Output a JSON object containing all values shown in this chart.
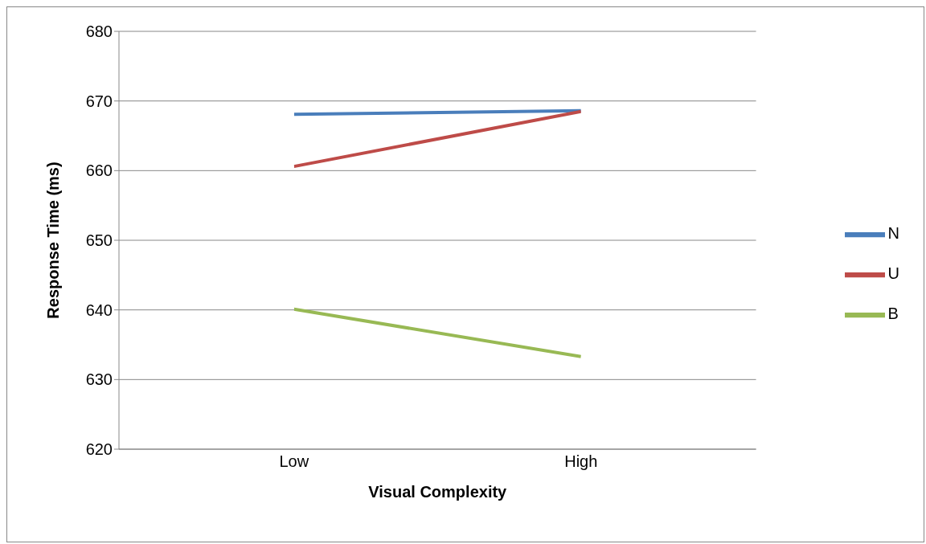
{
  "chart_data": {
    "type": "line",
    "xlabel": "Visual Complexity",
    "ylabel": "Response Time (ms)",
    "categories": [
      "Low",
      "High"
    ],
    "series": [
      {
        "name": "N",
        "color": "#4a7ebb",
        "values": [
          668.1,
          668.6
        ]
      },
      {
        "name": "U",
        "color": "#be4b48",
        "values": [
          660.6,
          668.5
        ]
      },
      {
        "name": "B",
        "color": "#98b954",
        "values": [
          640.1,
          633.3
        ]
      }
    ],
    "ylim": [
      620,
      680
    ],
    "yticks": [
      620,
      630,
      640,
      650,
      660,
      670,
      680
    ],
    "grid": "y",
    "legend": "right",
    "marker": "none",
    "line_style": "solid"
  }
}
